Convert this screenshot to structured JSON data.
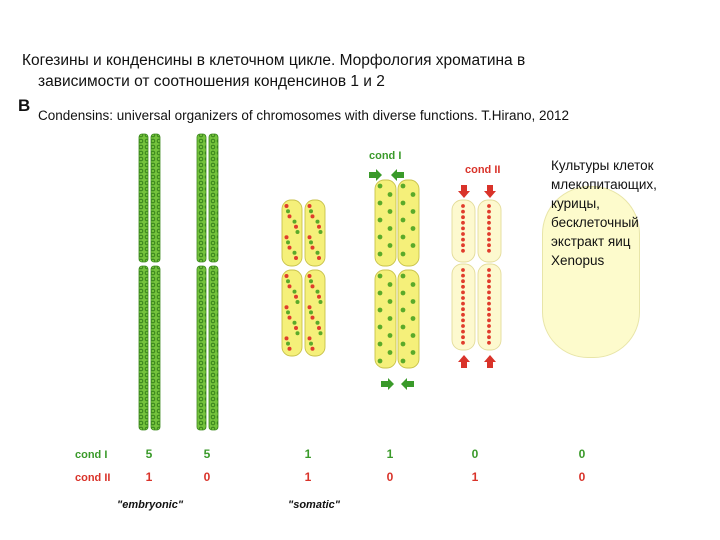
{
  "title": {
    "line1": "Когезины и конденсины в клеточном цикле. Морфология хроматина в",
    "line2": "зависимости от соотношения конденсинов 1 и 2"
  },
  "panel_letter": "B",
  "citation": "Condensins: universal organizers of chromosomes with diverse functions. T.Hirano, 2012",
  "note": "Культуры клеток\nмлекопитающих,\nкурицы,\nбесклеточный\nэкстракт яиц\nXenopus",
  "labels": {
    "cond1_top": "cond I",
    "cond2_top": "cond II",
    "row_cond1": "cond I",
    "row_cond2": "cond II",
    "embryonic": "\"embryonic\"",
    "somatic": "\"somatic\""
  },
  "ratios": {
    "cond1": [
      "5",
      "5",
      "1",
      "1",
      "0",
      "0"
    ],
    "cond2": [
      "1",
      "0",
      "1",
      "0",
      "1",
      "0"
    ]
  },
  "colors": {
    "embryonic_chromatid": "#66bb33",
    "somatic_chromatid": "#f5f07a",
    "cond1_dot": "#5aaa2a",
    "cond2_dot": "#e03c2c",
    "arrow_green": "#3a9a2a",
    "arrow_red": "#d9332a",
    "pale_chromatid": "#fdf9cf"
  }
}
